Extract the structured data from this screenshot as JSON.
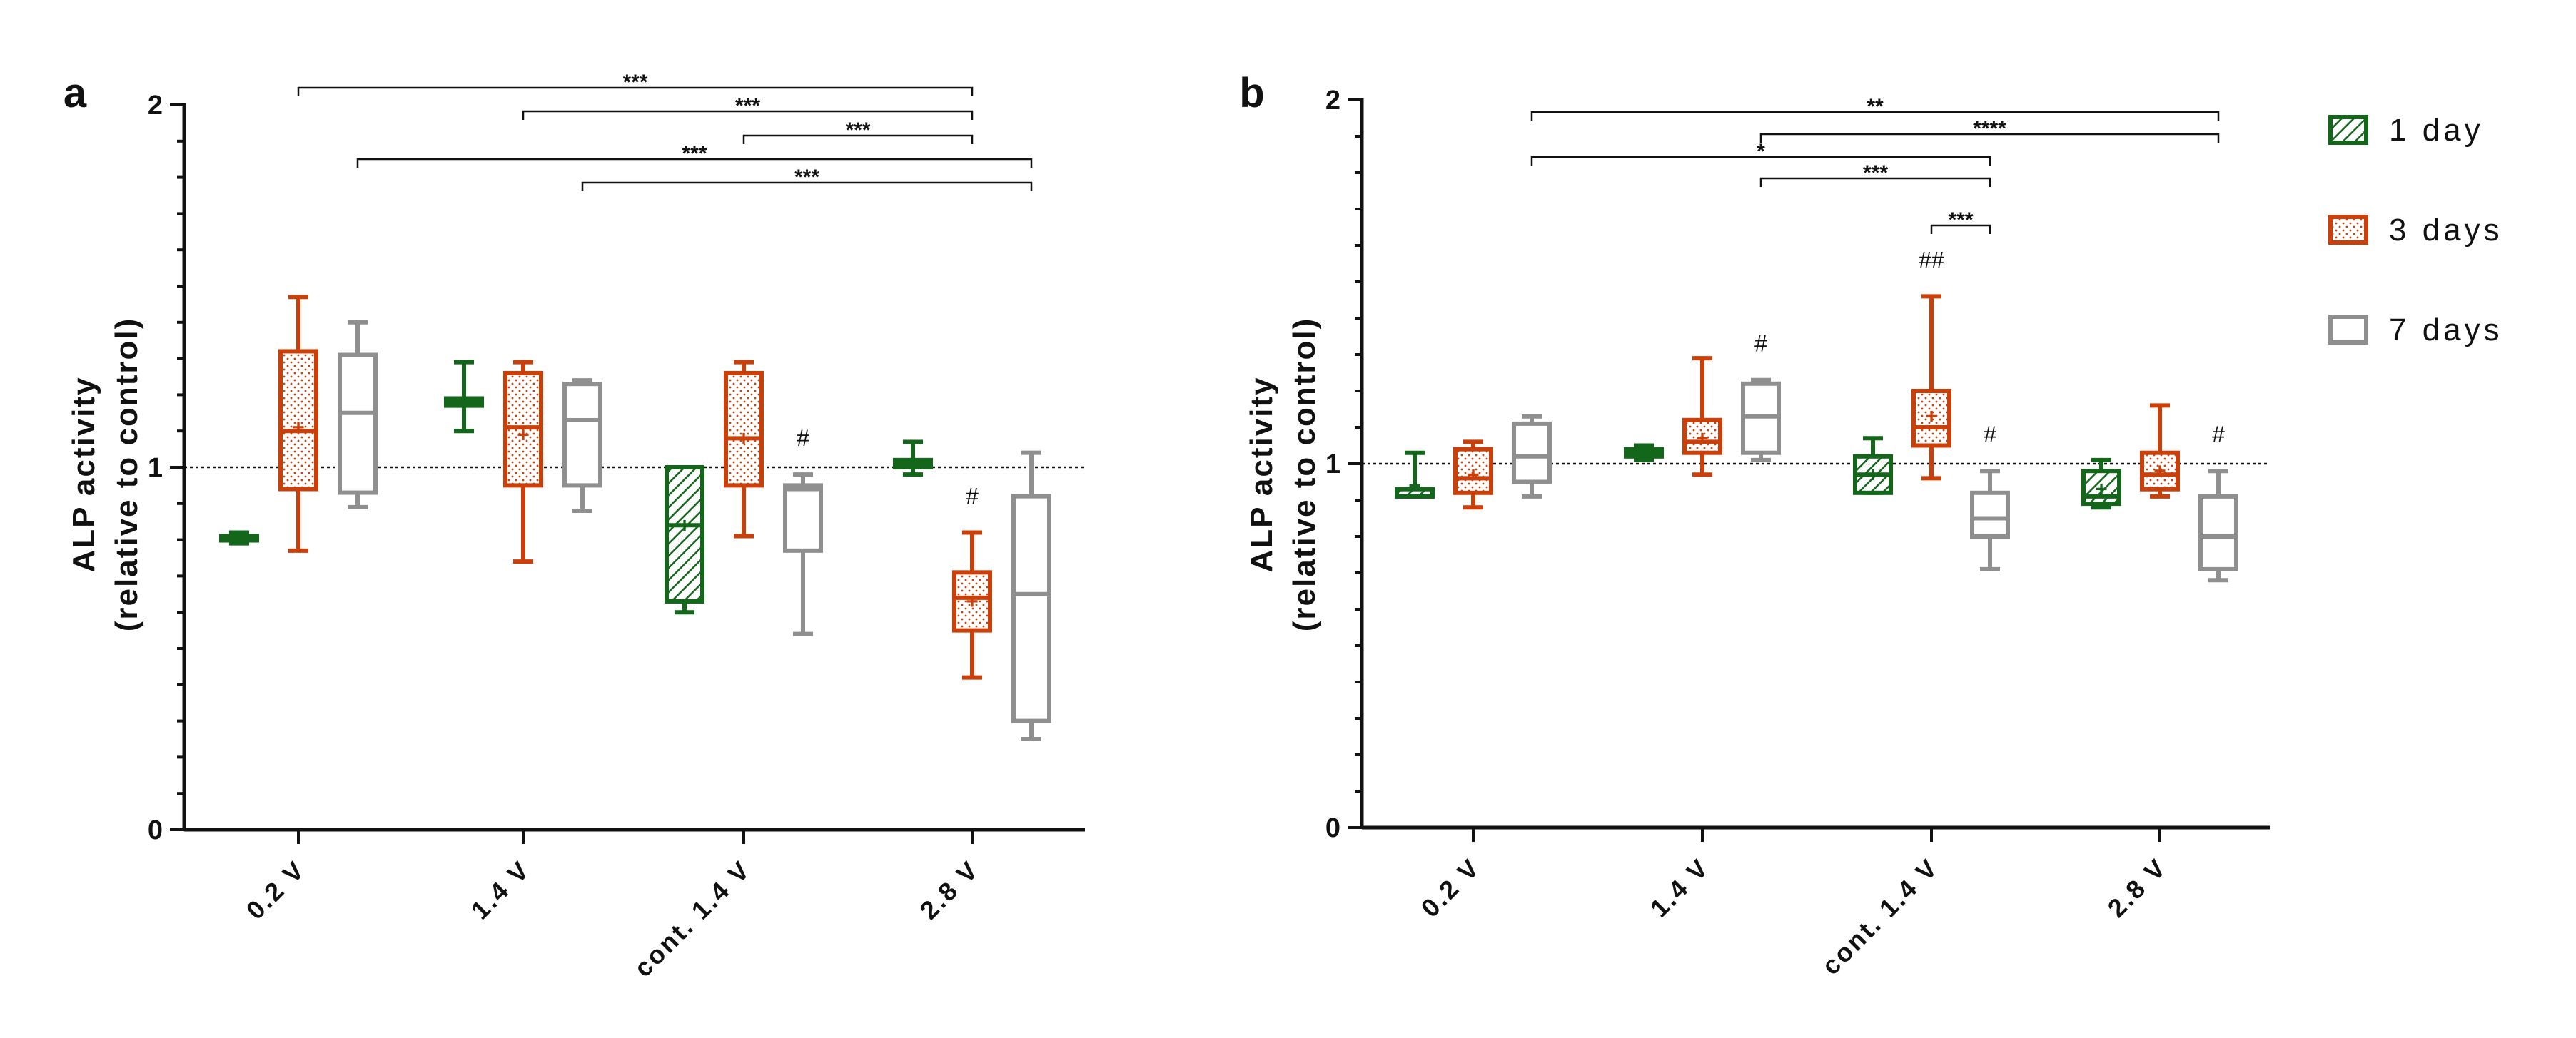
{
  "chart_data": [
    {
      "type": "boxplot",
      "panel": "a",
      "ylabel_line1": "ALP activity",
      "ylabel_line2": "(relative to control)",
      "ylim": [
        0,
        2
      ],
      "yticks": [
        0,
        1,
        2
      ],
      "yticks_text": [
        "0",
        "1",
        "2"
      ],
      "reference_line": 1,
      "categories": [
        "0.2 V",
        "1.4 V",
        "cont. 1.4 V",
        "2.8 V"
      ],
      "series": [
        {
          "name": "1 day",
          "boxes": [
            {
              "min": 0.79,
              "q1": 0.8,
              "median": 0.805,
              "q3": 0.81,
              "max": 0.82,
              "mean": 0.805
            },
            {
              "min": 1.1,
              "q1": 1.17,
              "median": 1.18,
              "q3": 1.19,
              "max": 1.29,
              "mean": 1.18
            },
            {
              "min": 0.6,
              "q1": 0.63,
              "median": 0.84,
              "q3": 1.0,
              "max": 1.0,
              "mean": 0.84
            },
            {
              "min": 0.98,
              "q1": 1.0,
              "median": 1.01,
              "q3": 1.02,
              "max": 1.07,
              "mean": 1.01
            }
          ]
        },
        {
          "name": "3 days",
          "boxes": [
            {
              "min": 0.77,
              "q1": 0.94,
              "median": 1.1,
              "q3": 1.32,
              "max": 1.47,
              "mean": 1.11
            },
            {
              "min": 0.74,
              "q1": 0.95,
              "median": 1.11,
              "q3": 1.26,
              "max": 1.29,
              "mean": 1.09
            },
            {
              "min": 0.81,
              "q1": 0.95,
              "median": 1.08,
              "q3": 1.26,
              "max": 1.29,
              "mean": 1.08
            },
            {
              "min": 0.42,
              "q1": 0.55,
              "median": 0.64,
              "q3": 0.71,
              "max": 0.82,
              "mean": 0.63
            }
          ]
        },
        {
          "name": "7 days",
          "boxes": [
            {
              "min": 0.89,
              "q1": 0.93,
              "median": 1.15,
              "q3": 1.31,
              "max": 1.4,
              "mean": null
            },
            {
              "min": 0.88,
              "q1": 0.95,
              "median": 1.13,
              "q3": 1.23,
              "max": 1.24,
              "mean": null
            },
            {
              "min": 0.54,
              "q1": 0.77,
              "median": 0.94,
              "q3": 0.95,
              "max": 0.98,
              "mean": null
            },
            {
              "min": 0.25,
              "q1": 0.3,
              "median": 0.65,
              "q3": 0.92,
              "max": 1.04,
              "mean": null
            }
          ]
        }
      ],
      "brackets": [
        {
          "from": [
            0,
            1
          ],
          "to": [
            3,
            1
          ],
          "text": "***"
        },
        {
          "from": [
            1,
            1
          ],
          "to": [
            3,
            1
          ],
          "text": "***"
        },
        {
          "from": [
            2,
            1
          ],
          "to": [
            3,
            1
          ],
          "text": "***"
        },
        {
          "from": [
            0,
            2
          ],
          "to": [
            3,
            2
          ],
          "text": "***"
        },
        {
          "from": [
            1,
            2
          ],
          "to": [
            3,
            2
          ],
          "text": "***"
        }
      ],
      "hash_marks": [
        {
          "cat": 2,
          "series": 2,
          "text": "#"
        },
        {
          "cat": 3,
          "series": 1,
          "text": "#"
        }
      ]
    },
    {
      "type": "boxplot",
      "panel": "b",
      "ylabel_line1": "ALP activity",
      "ylabel_line2": "(relative to control)",
      "ylim": [
        0,
        2
      ],
      "yticks": [
        0,
        1,
        2
      ],
      "yticks_text": [
        "0",
        "1",
        "2"
      ],
      "reference_line": 1,
      "categories": [
        "0.2 V",
        "1.4 V",
        "cont. 1.4 V",
        "2.8 V"
      ],
      "series": [
        {
          "name": "1 day",
          "boxes": [
            {
              "min": 0.91,
              "q1": 0.91,
              "median": 0.91,
              "q3": 0.93,
              "max": 1.03,
              "mean": 0.94
            },
            {
              "min": 1.01,
              "q1": 1.02,
              "median": 1.03,
              "q3": 1.04,
              "max": 1.05,
              "mean": 1.03
            },
            {
              "min": 0.92,
              "q1": 0.92,
              "median": 0.97,
              "q3": 1.02,
              "max": 1.07,
              "mean": 0.97
            },
            {
              "min": 0.88,
              "q1": 0.89,
              "median": 0.91,
              "q3": 0.98,
              "max": 1.01,
              "mean": 0.93
            }
          ]
        },
        {
          "name": "3 days",
          "boxes": [
            {
              "min": 0.88,
              "q1": 0.92,
              "median": 0.96,
              "q3": 1.04,
              "max": 1.06,
              "mean": 0.97
            },
            {
              "min": 0.97,
              "q1": 1.03,
              "median": 1.06,
              "q3": 1.12,
              "max": 1.29,
              "mean": 1.07
            },
            {
              "min": 0.96,
              "q1": 1.05,
              "median": 1.1,
              "q3": 1.2,
              "max": 1.46,
              "mean": 1.13
            },
            {
              "min": 0.91,
              "q1": 0.93,
              "median": 0.97,
              "q3": 1.03,
              "max": 1.16,
              "mean": 0.98
            }
          ]
        },
        {
          "name": "7 days",
          "boxes": [
            {
              "min": 0.91,
              "q1": 0.95,
              "median": 1.02,
              "q3": 1.11,
              "max": 1.13,
              "mean": null
            },
            {
              "min": 1.01,
              "q1": 1.03,
              "median": 1.13,
              "q3": 1.22,
              "max": 1.23,
              "mean": null
            },
            {
              "min": 0.71,
              "q1": 0.8,
              "median": 0.85,
              "q3": 0.92,
              "max": 0.98,
              "mean": null
            },
            {
              "min": 0.68,
              "q1": 0.71,
              "median": 0.8,
              "q3": 0.91,
              "max": 0.98,
              "mean": null
            }
          ]
        }
      ],
      "brackets": [
        {
          "from": [
            0,
            2
          ],
          "to": [
            3,
            2
          ],
          "text": "**"
        },
        {
          "from": [
            1,
            2
          ],
          "to": [
            3,
            2
          ],
          "text": "****"
        },
        {
          "from": [
            0,
            2
          ],
          "to": [
            2,
            2
          ],
          "text": "*"
        },
        {
          "from": [
            1,
            2
          ],
          "to": [
            2,
            2
          ],
          "text": "***"
        },
        {
          "from": [
            2,
            1
          ],
          "to": [
            2,
            2
          ],
          "text": "***"
        }
      ],
      "hash_marks": [
        {
          "cat": 1,
          "series": 2,
          "text": "#"
        },
        {
          "cat": 2,
          "series": 1,
          "text": "##"
        },
        {
          "cat": 2,
          "series": 2,
          "text": "#"
        },
        {
          "cat": 3,
          "series": 2,
          "text": "#"
        }
      ]
    }
  ],
  "legend": [
    {
      "label": "1 day",
      "series": 0
    },
    {
      "label": "3 days",
      "series": 1
    },
    {
      "label": "7 days",
      "series": 2
    }
  ],
  "colors": {
    "series": [
      "#13661a",
      "#c9400a",
      "#8f8f8f"
    ],
    "axis": "#111111"
  }
}
